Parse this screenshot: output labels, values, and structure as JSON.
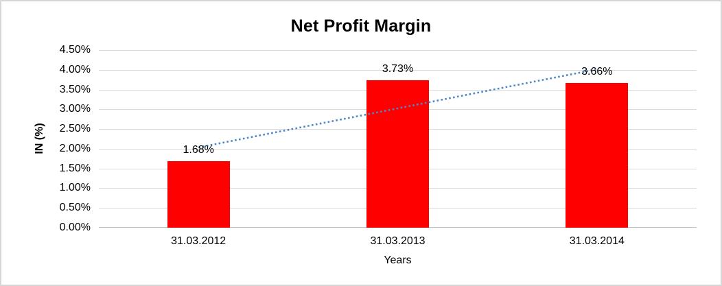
{
  "window": {
    "background": "#FFFFFF",
    "border_color": "#D6D6D6"
  },
  "chart_data": {
    "type": "bar",
    "title": "Net Profit Margin",
    "xlabel": "Years",
    "ylabel": "IN (%)",
    "categories": [
      "31.03.2012",
      "31.03.2013",
      "31.03.2014"
    ],
    "values": [
      1.68,
      3.73,
      3.66
    ],
    "data_labels": [
      "1.68%",
      "3.73%",
      "3.66%"
    ],
    "ylim": [
      0,
      4.5
    ],
    "ytick_step": 0.5,
    "ytick_labels": [
      "0.00%",
      "0.50%",
      "1.00%",
      "1.50%",
      "2.00%",
      "2.50%",
      "3.00%",
      "3.50%",
      "4.00%",
      "4.50%"
    ],
    "grid": true,
    "legend": "none",
    "bar_color": "#FF0000",
    "gridline_color": "#D9D9D9",
    "axis_line_color": "#BFBFBF",
    "text_color": "#000000",
    "trendline": {
      "type": "linear",
      "style": "dotted",
      "color": "#4E87C8"
    }
  }
}
